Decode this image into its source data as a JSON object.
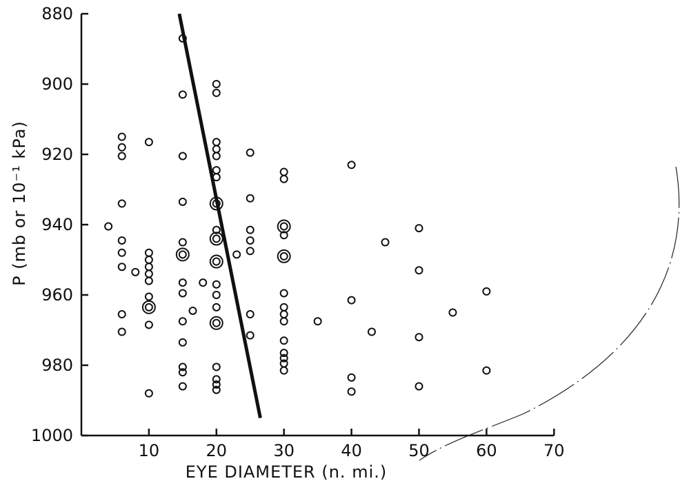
{
  "chart_data": {
    "type": "scatter",
    "title": "",
    "xlabel": "EYE DIAMETER (n. mi.)",
    "ylabel": "P (mb or 10⁻¹ kPa)",
    "xlim": [
      0,
      70
    ],
    "ylim": [
      880,
      1000
    ],
    "y_inverted": true,
    "grid": false,
    "xticks": [
      "10",
      "20",
      "30",
      "40",
      "50",
      "60",
      "70"
    ],
    "yticks": [
      "880",
      "900",
      "920",
      "940",
      "960",
      "980",
      "1000"
    ],
    "points": [
      {
        "x": 4,
        "y": 940.5,
        "double": false
      },
      {
        "x": 6,
        "y": 915,
        "double": false
      },
      {
        "x": 6,
        "y": 918,
        "double": false
      },
      {
        "x": 6,
        "y": 920.5,
        "double": false
      },
      {
        "x": 6,
        "y": 934,
        "double": false
      },
      {
        "x": 6,
        "y": 944.5,
        "double": false
      },
      {
        "x": 6,
        "y": 948,
        "double": false
      },
      {
        "x": 6,
        "y": 952,
        "double": false
      },
      {
        "x": 6,
        "y": 965.5,
        "double": false
      },
      {
        "x": 6,
        "y": 970.5,
        "double": false
      },
      {
        "x": 8,
        "y": 953.5,
        "double": false
      },
      {
        "x": 10,
        "y": 916.5,
        "double": false
      },
      {
        "x": 10,
        "y": 948,
        "double": false
      },
      {
        "x": 10,
        "y": 950,
        "double": false
      },
      {
        "x": 10,
        "y": 952,
        "double": false
      },
      {
        "x": 10,
        "y": 954,
        "double": false
      },
      {
        "x": 10,
        "y": 956,
        "double": false
      },
      {
        "x": 10,
        "y": 960.5,
        "double": false
      },
      {
        "x": 10,
        "y": 963.5,
        "double": true
      },
      {
        "x": 10,
        "y": 968.5,
        "double": false
      },
      {
        "x": 10,
        "y": 988,
        "double": false
      },
      {
        "x": 15,
        "y": 887,
        "double": false
      },
      {
        "x": 15,
        "y": 903,
        "double": false
      },
      {
        "x": 15,
        "y": 920.5,
        "double": false
      },
      {
        "x": 15,
        "y": 933.5,
        "double": false
      },
      {
        "x": 15,
        "y": 945,
        "double": false
      },
      {
        "x": 15,
        "y": 948.5,
        "double": true
      },
      {
        "x": 15,
        "y": 956.5,
        "double": false
      },
      {
        "x": 15,
        "y": 959.5,
        "double": false
      },
      {
        "x": 15,
        "y": 967.5,
        "double": false
      },
      {
        "x": 15,
        "y": 973.5,
        "double": false
      },
      {
        "x": 15,
        "y": 980.5,
        "double": false
      },
      {
        "x": 15,
        "y": 982,
        "double": false
      },
      {
        "x": 15,
        "y": 986,
        "double": false
      },
      {
        "x": 16.5,
        "y": 964.5,
        "double": false
      },
      {
        "x": 18,
        "y": 956.5,
        "double": false
      },
      {
        "x": 20,
        "y": 900,
        "double": false
      },
      {
        "x": 20,
        "y": 902.5,
        "double": false
      },
      {
        "x": 20,
        "y": 916.5,
        "double": false
      },
      {
        "x": 20,
        "y": 918.5,
        "double": false
      },
      {
        "x": 20,
        "y": 920.5,
        "double": false
      },
      {
        "x": 20,
        "y": 924.5,
        "double": false
      },
      {
        "x": 20,
        "y": 926.5,
        "double": false
      },
      {
        "x": 20,
        "y": 934,
        "double": true
      },
      {
        "x": 20,
        "y": 941.5,
        "double": false
      },
      {
        "x": 20,
        "y": 944,
        "double": true
      },
      {
        "x": 20,
        "y": 950.5,
        "double": true
      },
      {
        "x": 20,
        "y": 957,
        "double": false
      },
      {
        "x": 20,
        "y": 960,
        "double": false
      },
      {
        "x": 20,
        "y": 963.5,
        "double": false
      },
      {
        "x": 20,
        "y": 968,
        "double": true
      },
      {
        "x": 20,
        "y": 980.5,
        "double": false
      },
      {
        "x": 20,
        "y": 984,
        "double": false
      },
      {
        "x": 20,
        "y": 985.5,
        "double": false
      },
      {
        "x": 20,
        "y": 987,
        "double": false
      },
      {
        "x": 23,
        "y": 948.5,
        "double": false
      },
      {
        "x": 25,
        "y": 919.5,
        "double": false
      },
      {
        "x": 25,
        "y": 932.5,
        "double": false
      },
      {
        "x": 25,
        "y": 941.5,
        "double": false
      },
      {
        "x": 25,
        "y": 944.5,
        "double": false
      },
      {
        "x": 25,
        "y": 947.5,
        "double": false
      },
      {
        "x": 25,
        "y": 965.5,
        "double": false
      },
      {
        "x": 25,
        "y": 971.5,
        "double": false
      },
      {
        "x": 30,
        "y": 925,
        "double": false
      },
      {
        "x": 30,
        "y": 927,
        "double": false
      },
      {
        "x": 30,
        "y": 940.5,
        "double": true
      },
      {
        "x": 30,
        "y": 943,
        "double": false
      },
      {
        "x": 30,
        "y": 949,
        "double": true
      },
      {
        "x": 30,
        "y": 959.5,
        "double": false
      },
      {
        "x": 30,
        "y": 963.5,
        "double": false
      },
      {
        "x": 30,
        "y": 965.5,
        "double": false
      },
      {
        "x": 30,
        "y": 967.5,
        "double": false
      },
      {
        "x": 30,
        "y": 973,
        "double": false
      },
      {
        "x": 30,
        "y": 976.5,
        "double": false
      },
      {
        "x": 30,
        "y": 978,
        "double": false
      },
      {
        "x": 30,
        "y": 979.5,
        "double": false
      },
      {
        "x": 30,
        "y": 981.5,
        "double": false
      },
      {
        "x": 35,
        "y": 967.5,
        "double": false
      },
      {
        "x": 40,
        "y": 923,
        "double": false
      },
      {
        "x": 40,
        "y": 961.5,
        "double": false
      },
      {
        "x": 40,
        "y": 983.5,
        "double": false
      },
      {
        "x": 40,
        "y": 987.5,
        "double": false
      },
      {
        "x": 43,
        "y": 970.5,
        "double": false
      },
      {
        "x": 45,
        "y": 945,
        "double": false
      },
      {
        "x": 50,
        "y": 941,
        "double": false
      },
      {
        "x": 50,
        "y": 953,
        "double": false
      },
      {
        "x": 50,
        "y": 972,
        "double": false
      },
      {
        "x": 50,
        "y": 986,
        "double": false
      },
      {
        "x": 55,
        "y": 965,
        "double": false
      },
      {
        "x": 60,
        "y": 959,
        "double": false
      },
      {
        "x": 60,
        "y": 981.5,
        "double": false
      }
    ],
    "fit_line": {
      "x1": 14.5,
      "y1": 880,
      "x2": 26.5,
      "y2": 995
    }
  }
}
